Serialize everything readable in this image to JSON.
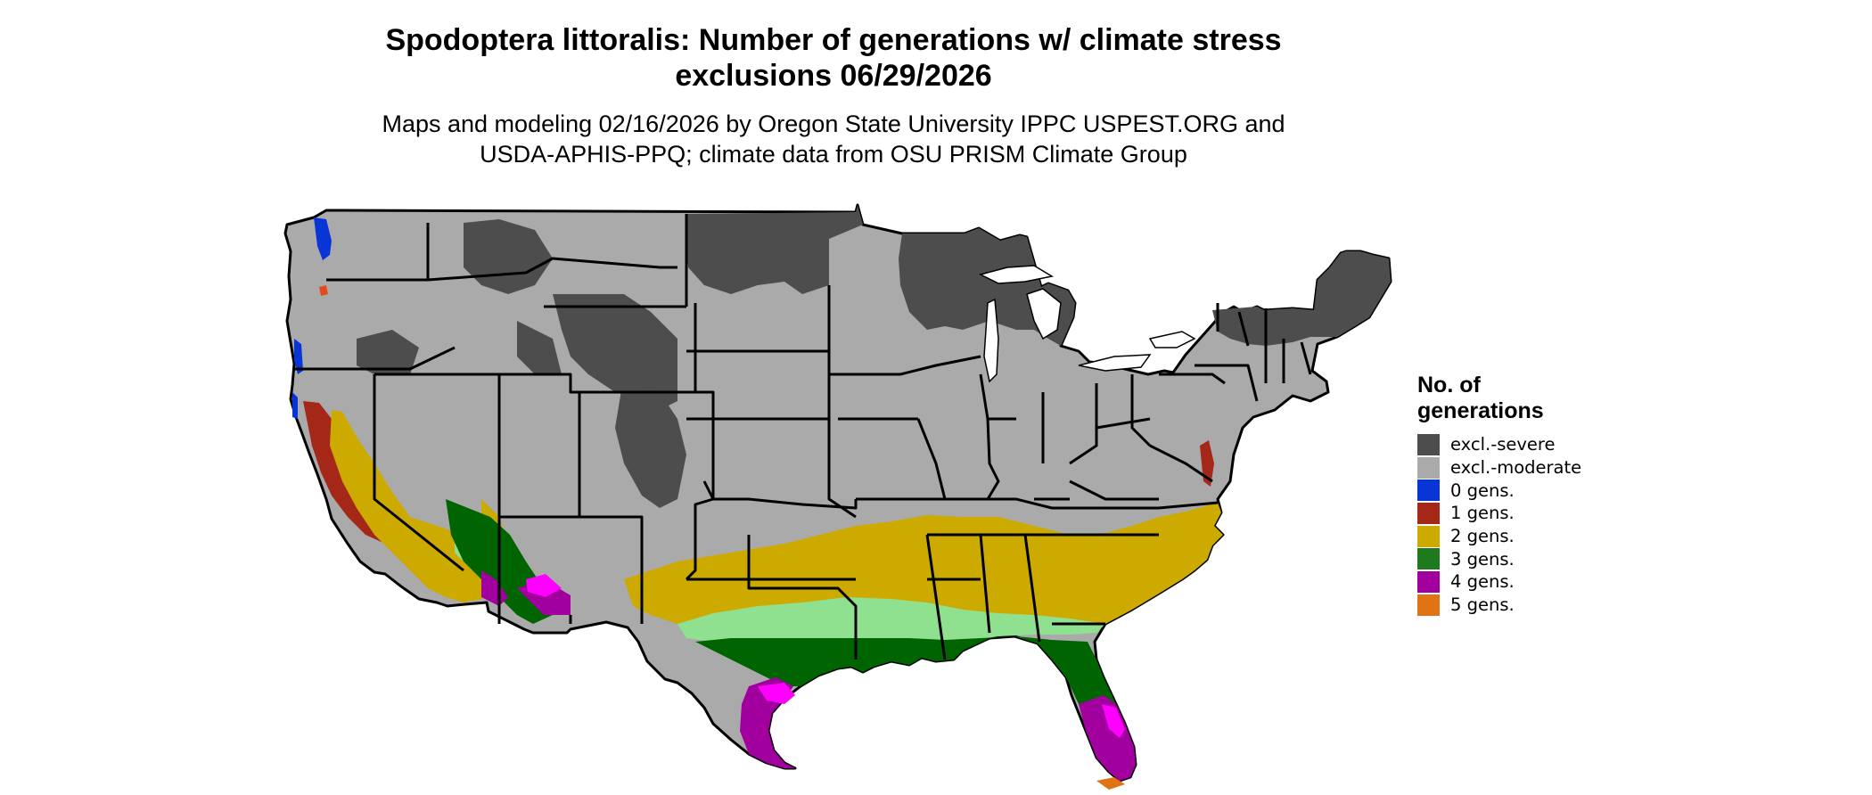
{
  "title": {
    "line1": "Spodoptera littoralis: Number of generations w/ climate stress",
    "line2": "exclusions 06/29/2026"
  },
  "subtitle": {
    "line1": "Maps and modeling 02/16/2026 by Oregon State University IPPC USPEST.ORG and",
    "line2": "USDA-APHIS-PPQ; climate data from OSU PRISM Climate Group"
  },
  "legend": {
    "title": "No. of generations",
    "items": [
      {
        "label": "excl.-severe",
        "color": "#4d4d4d"
      },
      {
        "label": "excl.-moderate",
        "color": "#aaaaaa"
      },
      {
        "label": "0 gens.",
        "color": "#0a35d6"
      },
      {
        "label": "1 gens.",
        "color": "#a52718"
      },
      {
        "label": "2 gens.",
        "color": "#ccaa00"
      },
      {
        "label": "3 gens.",
        "color": "#1f7a1f"
      },
      {
        "label": "4 gens.",
        "color": "#a1009f"
      },
      {
        "label": "5 gens.",
        "color": "#e07414"
      }
    ]
  },
  "map_colors": {
    "severe": "#4d4d4d",
    "moderate": "#aaaaaa",
    "zero": "#0a35d6",
    "one": "#a52718",
    "two": "#ccaa00",
    "three": "#1f7a1f",
    "three_light": "#8fe08f",
    "three_dark": "#006400",
    "four": "#a1009f",
    "four_bright": "#ff00ff",
    "five": "#e07414",
    "water": "#ffffff",
    "border": "#000000"
  }
}
